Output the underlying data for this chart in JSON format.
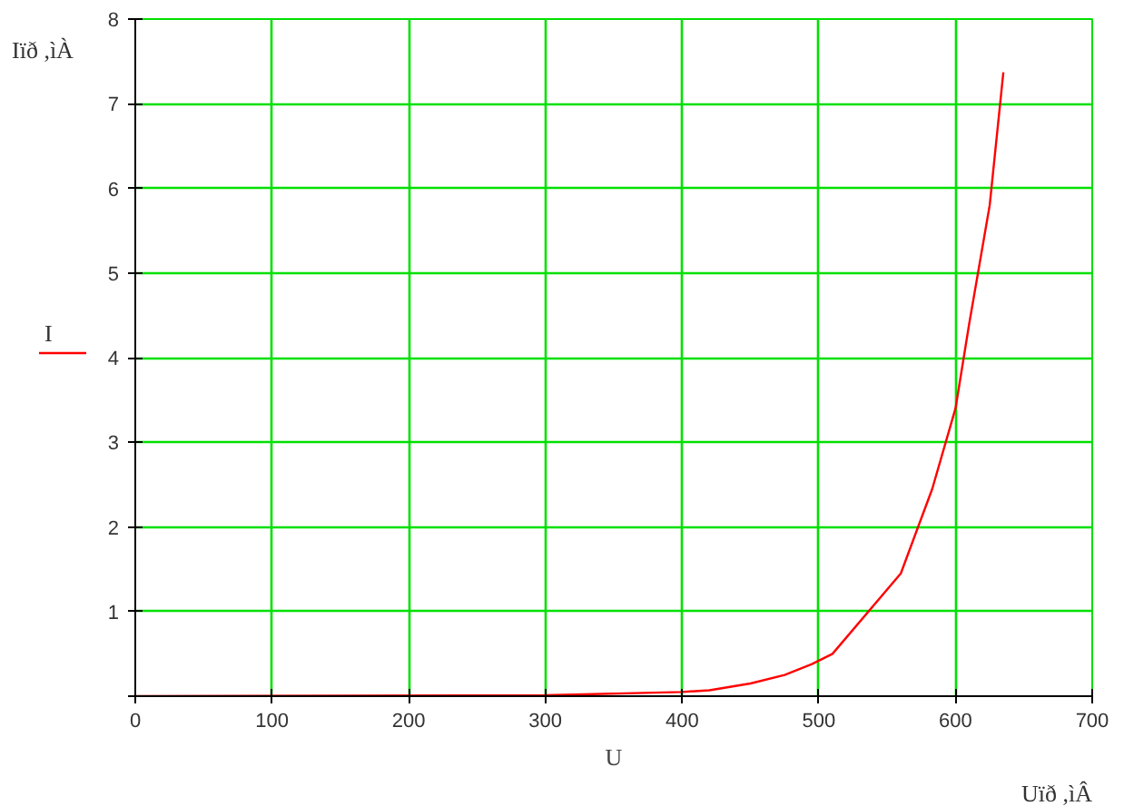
{
  "chart_data": {
    "type": "line",
    "ylabel": "Iïð ,ìÀ",
    "xlabel": "U",
    "annotations": [
      "Uïð ,ìÂ"
    ],
    "x": [
      0,
      300,
      400,
      420,
      450,
      475,
      495,
      510,
      560,
      583,
      600,
      610,
      625,
      635
    ],
    "series": [
      {
        "name": "I",
        "color": "#ff0000",
        "values": [
          0,
          0.01,
          0.05,
          0.07,
          0.15,
          0.25,
          0.38,
          0.5,
          1.45,
          2.45,
          3.4,
          4.4,
          5.8,
          7.37
        ]
      }
    ],
    "xlim": [
      0,
      700
    ],
    "ylim": [
      0,
      8
    ],
    "xticks": [
      0,
      100,
      200,
      300,
      400,
      500,
      600,
      700
    ],
    "yticks": [
      {
        "value": 0,
        "label": null
      },
      1,
      2,
      3,
      4,
      5,
      6,
      7,
      8
    ],
    "grid": true,
    "legend": "left",
    "marker": "none",
    "line_style": "solid"
  }
}
